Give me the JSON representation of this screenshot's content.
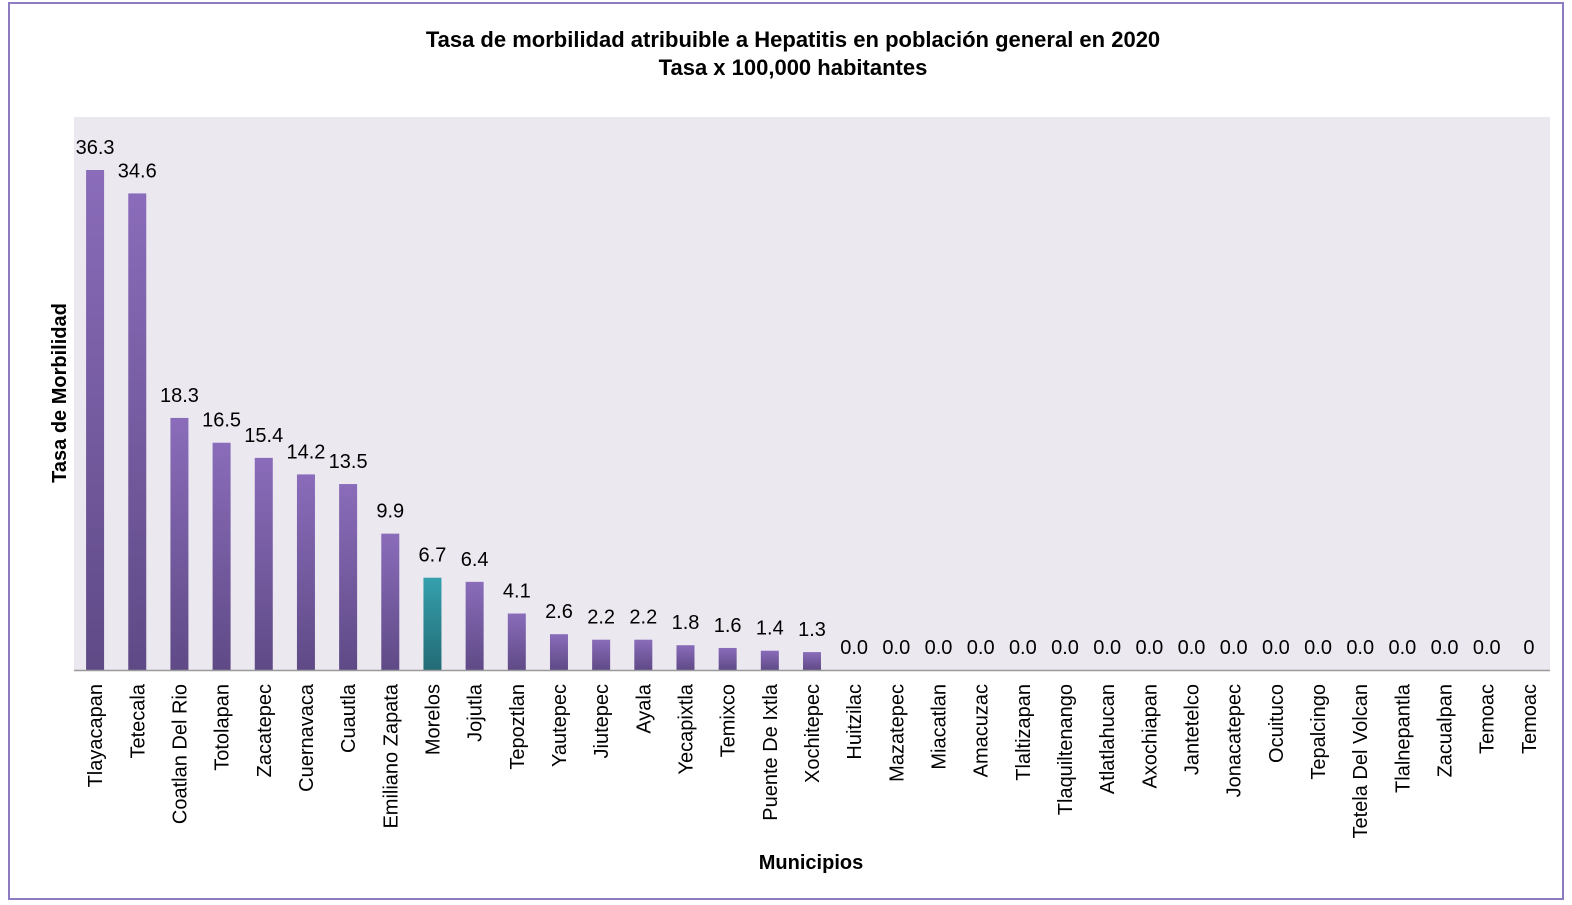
{
  "chart_data": {
    "type": "bar",
    "title": "Tasa de morbilidad atribuible a Hepatitis en población general en 2020",
    "subtitle": "Tasa x 100,000 habitantes",
    "xlabel": "Municipios",
    "ylabel": "Tasa de Morbilidad",
    "ylim": [
      0,
      40
    ],
    "grid": false,
    "legend": "none",
    "colors": {
      "bar": "#7b5ea7",
      "highlight": "#2e8a96",
      "plot_bg": "#ebe8f0"
    },
    "highlight_category": "Morelos",
    "categories": [
      "Tlayacapan",
      "Tetecala",
      "Coatlan Del Rio",
      "Totolapan",
      "Zacatepec",
      "Cuernavaca",
      "Cuautla",
      "Emiliano Zapata",
      "Morelos",
      "Jojutla",
      "Tepoztlan",
      "Yautepec",
      "Jiutepec",
      "Ayala",
      "Yecapixtla",
      "Temixco",
      "Puente De Ixtla",
      "Xochitepec",
      "Huitzilac",
      "Mazatepec",
      "Miacatlan",
      "Amacuzac",
      "Tlaltizapan",
      "Tlaquiltenango",
      "Atlatlahucan",
      "Axochiapan",
      "Jantetelco",
      "Jonacatepec",
      "Ocuituco",
      "Tepalcingo",
      "Tetela Del Volcan",
      "Tlalnepantla",
      "Zacualpan",
      "Temoac",
      "Temoac"
    ],
    "values": [
      36.3,
      34.6,
      18.3,
      16.5,
      15.4,
      14.2,
      13.5,
      9.9,
      6.7,
      6.4,
      4.1,
      2.6,
      2.2,
      2.2,
      1.8,
      1.6,
      1.4,
      1.3,
      0,
      0,
      0,
      0,
      0,
      0,
      0,
      0,
      0,
      0,
      0,
      0,
      0,
      0,
      0,
      0,
      0
    ],
    "data_labels": [
      "36.3",
      "34.6",
      "18.3",
      "16.5",
      "15.4",
      "14.2",
      "13.5",
      "9.9",
      "6.7",
      "6.4",
      "4.1",
      "2.6",
      "2.2",
      "2.2",
      "1.8",
      "1.6",
      "1.4",
      "1.3",
      "0.0",
      "0.0",
      "0.0",
      "0.0",
      "0.0",
      "0.0",
      "0.0",
      "0.0",
      "0.0",
      "0.0",
      "0.0",
      "0.0",
      "0.0",
      "0.0",
      "0.0",
      "0.0",
      "0"
    ]
  }
}
